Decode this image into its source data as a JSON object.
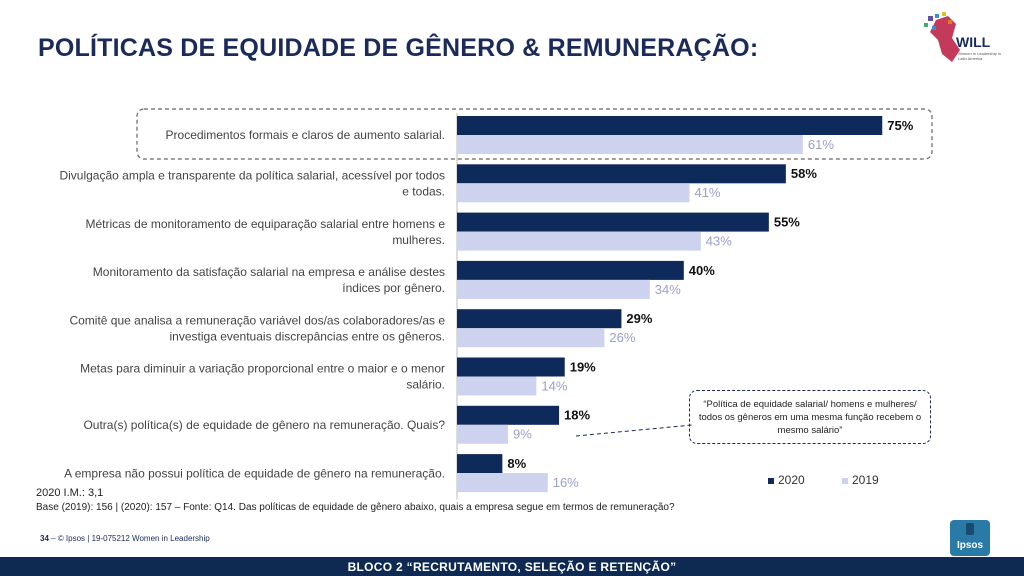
{
  "header": {
    "title": "POLÍTICAS DE EQUIDADE DE GÊNERO & REMUNERAÇÃO:"
  },
  "logo": {
    "name": "WILL",
    "subtitle": "Women in Leadership in Latin America"
  },
  "chart_data": {
    "type": "bar",
    "orientation": "horizontal",
    "categories": [
      "Procedimentos formais e claros de aumento salarial.",
      "Divulgação ampla e transparente da política salarial, acessível por todos e todas.",
      "Métricas de monitoramento de equiparação salarial entre homens e mulheres.",
      "Monitoramento da satisfação salarial na empresa e análise destes índices por gênero.",
      "Comitê que analisa a remuneração variável dos/as colaboradores/as e investiga eventuais discrepâncias entre os gêneros.",
      "Metas para diminuir a variação proporcional entre o maior e o menor salário.",
      "Outra(s) política(s) de equidade de gênero na remuneração. Quais?",
      "A empresa não possui política de equidade de gênero na remuneração."
    ],
    "category_lines": [
      [
        "Procedimentos formais e claros de aumento salarial."
      ],
      [
        "Divulgação ampla e transparente da política salarial, acessível por todos",
        "e todas."
      ],
      [
        "Métricas de monitoramento de equiparação salarial entre homens e",
        "mulheres."
      ],
      [
        "Monitoramento da satisfação salarial na empresa e análise destes",
        "índices por gênero."
      ],
      [
        "Comitê que analisa a remuneração variável dos/as colaboradores/as e",
        "investiga eventuais discrepâncias entre os gêneros."
      ],
      [
        "Metas para diminuir a variação proporcional entre o maior e o menor",
        "salário."
      ],
      [
        "Outra(s) política(s) de equidade de gênero na remuneração. Quais?"
      ],
      [
        "A empresa não possui política de equidade de gênero na remuneração."
      ]
    ],
    "series": [
      {
        "name": "2020",
        "values": [
          75,
          58,
          55,
          40,
          29,
          19,
          18,
          8
        ],
        "labels": [
          "75%",
          "58%",
          "55%",
          "40%",
          "29%",
          "19%",
          "18%",
          "8%"
        ],
        "color": "#0e2a5a"
      },
      {
        "name": "2019",
        "values": [
          61,
          41,
          43,
          34,
          26,
          14,
          9,
          16
        ],
        "labels": [
          "61%",
          "41%",
          "43%",
          "34%",
          "26%",
          "14%",
          "9%",
          "16%"
        ],
        "color": "#cdd3ee"
      }
    ],
    "xlim": [
      0,
      100
    ],
    "legend_position": "bottom-right",
    "highlighted_category_index": 0
  },
  "callout": {
    "text": "“Política de equidade salarial/ homens e mulheres/ todos os gêneros em uma mesma função recebem o mesmo salário”"
  },
  "notes": {
    "im": "2020 I.M.: 3,1",
    "base": "Base (2019): 156 | (2020): 157 – Fonte: Q14. Das políticas de equidade de gênero abaixo, quais a empresa segue em termos de remuneração?"
  },
  "footer": {
    "page_number": "34",
    "copyright": "–  © Ipsos | 19-075212 Women in Leadership",
    "section": "BLOCO 2 “RECRUTAMENTO, SELEÇÃO E RETENÇÃO”",
    "brand": "Ipsos"
  }
}
